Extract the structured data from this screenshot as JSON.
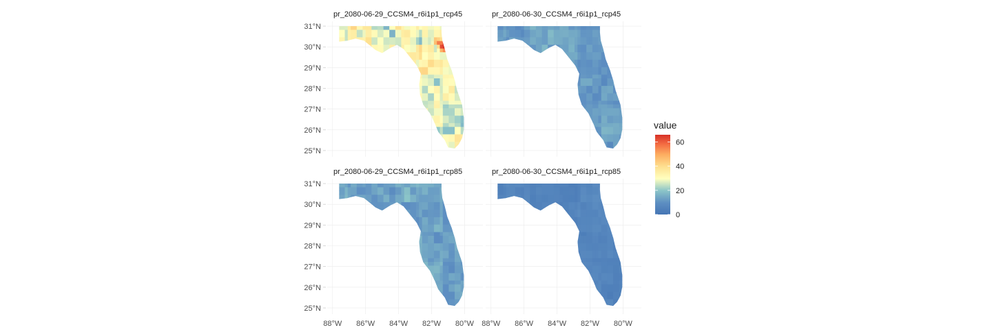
{
  "chart_data": {
    "type": "heatmap",
    "subtype": "faceted-raster-map",
    "region": "Florida",
    "variable": "pr",
    "panels": [
      {
        "title": "pr_2080-06-29_CCSM4_r6i1p1_rcp45",
        "row": 0,
        "col": 0,
        "intensity": 0.55,
        "hotspot": {
          "lon": -81.3,
          "lat": 30.0,
          "value": 62
        }
      },
      {
        "title": "pr_2080-06-30_CCSM4_r6i1p1_rcp45",
        "row": 0,
        "col": 1,
        "intensity": 0.22
      },
      {
        "title": "pr_2080-06-29_CCSM4_r6i1p1_rcp85",
        "row": 1,
        "col": 0,
        "intensity": 0.25
      },
      {
        "title": "pr_2080-06-30_CCSM4_r6i1p1_rcp85",
        "row": 1,
        "col": 1,
        "intensity": 0.12
      }
    ],
    "x_ticks": [
      {
        "value": -88,
        "label": "88°W"
      },
      {
        "value": -86,
        "label": "86°W"
      },
      {
        "value": -84,
        "label": "84°W"
      },
      {
        "value": -82,
        "label": "82°W"
      },
      {
        "value": -80,
        "label": "80°W"
      }
    ],
    "y_ticks": [
      {
        "value": 31,
        "label": "31°N"
      },
      {
        "value": 30,
        "label": "30°N"
      },
      {
        "value": 29,
        "label": "29°N"
      },
      {
        "value": 28,
        "label": "28°N"
      },
      {
        "value": 27,
        "label": "27°N"
      },
      {
        "value": 26,
        "label": "26°N"
      },
      {
        "value": 25,
        "label": "25°N"
      }
    ],
    "xlim": [
      -88.2,
      -79.6
    ],
    "ylim": [
      24.8,
      31.2
    ],
    "legend": {
      "title": "value",
      "range": [
        0,
        66
      ],
      "ticks": [
        {
          "value": 0,
          "label": "0"
        },
        {
          "value": 20,
          "label": "20"
        },
        {
          "value": 40,
          "label": "40"
        },
        {
          "value": 60,
          "label": "60"
        }
      ],
      "colors": [
        "#4575b4",
        "#74add1",
        "#abd9e9",
        "#ffffbf",
        "#fdae61",
        "#f46d43",
        "#d73027"
      ],
      "placement": "right"
    },
    "grid": true
  }
}
